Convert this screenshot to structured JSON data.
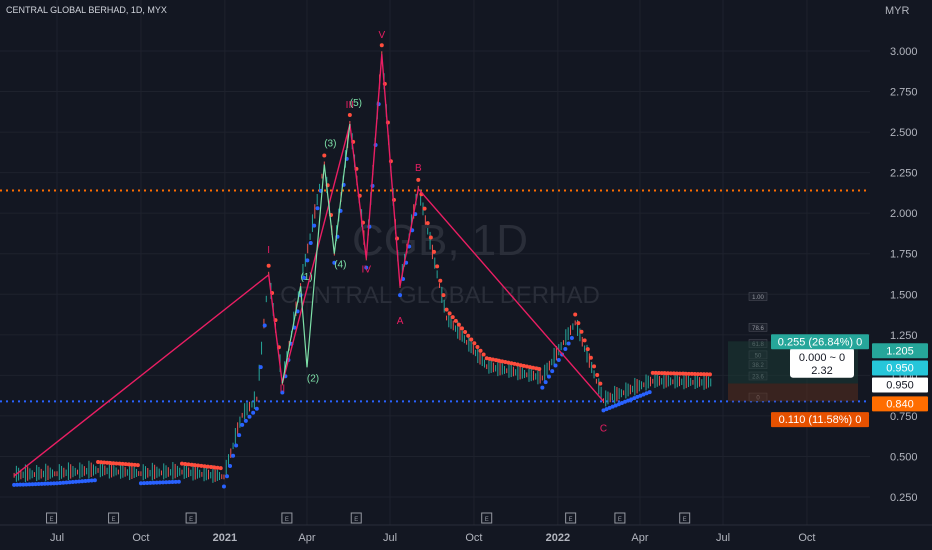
{
  "header": {
    "symbol": "CENTRAL GLOBAL BERHAD, 1D, MYX",
    "currency": "MYR"
  },
  "watermark": {
    "ticker": "CGB, 1D",
    "name": "CENTRAL GLOBAL BERHAD"
  },
  "colors": {
    "bg": "#131722",
    "text": "#b2b5be",
    "red": "#ff4d3d",
    "blue": "#2962ff",
    "wave": "#e91e63",
    "subwave": "#7ee0a8",
    "orange_line": "#ff6d00",
    "candle_up": "#26a69a",
    "candle_down": "#ef5350"
  },
  "chart_data": {
    "type": "line",
    "title": "CENTRAL GLOBAL BERHAD, 1D, MYX",
    "ylabel": "MYR",
    "ylim": [
      0.2,
      3.25
    ],
    "y_ticks": [
      "3.000",
      "2.750",
      "2.500",
      "2.250",
      "2.000",
      "1.750",
      "1.500",
      "1.250",
      "1.000",
      "0.750",
      "0.500",
      "0.250"
    ],
    "x_ticks": [
      "Jul",
      "Oct",
      "2021",
      "Apr",
      "Jul",
      "Oct",
      "2022",
      "Apr",
      "Jul",
      "Oct"
    ],
    "price_series": [
      {
        "x": "2020-05-15",
        "y": 0.38
      },
      {
        "x": "2020-07-01",
        "y": 0.39
      },
      {
        "x": "2020-08-15",
        "y": 0.41
      },
      {
        "x": "2020-10-01",
        "y": 0.39
      },
      {
        "x": "2020-11-15",
        "y": 0.4
      },
      {
        "x": "2020-12-31",
        "y": 0.37
      },
      {
        "x": "2021-01-20",
        "y": 0.75
      },
      {
        "x": "2021-02-05",
        "y": 0.85
      },
      {
        "x": "2021-02-18",
        "y": 1.62
      },
      {
        "x": "2021-03-05",
        "y": 0.95
      },
      {
        "x": "2021-03-25",
        "y": 1.55
      },
      {
        "x": "2021-04-20",
        "y": 2.3
      },
      {
        "x": "2021-05-01",
        "y": 1.75
      },
      {
        "x": "2021-05-18",
        "y": 2.55
      },
      {
        "x": "2021-06-05",
        "y": 1.72
      },
      {
        "x": "2021-06-22",
        "y": 2.98
      },
      {
        "x": "2021-07-12",
        "y": 1.55
      },
      {
        "x": "2021-08-01",
        "y": 2.15
      },
      {
        "x": "2021-09-01",
        "y": 1.35
      },
      {
        "x": "2021-10-15",
        "y": 1.05
      },
      {
        "x": "2021-12-15",
        "y": 0.98
      },
      {
        "x": "2022-01-20",
        "y": 1.32
      },
      {
        "x": "2022-02-20",
        "y": 0.84
      },
      {
        "x": "2022-04-15",
        "y": 0.96
      },
      {
        "x": "2022-06-20",
        "y": 0.95
      }
    ],
    "horizontal_levels": [
      {
        "y": 2.14,
        "style": "dotted",
        "color": "#ff6d00"
      },
      {
        "y": 0.84,
        "style": "dotted",
        "color": "#2962ff"
      }
    ],
    "wave_labels": [
      {
        "text": "I",
        "x": "2021-02-18",
        "y": 1.62
      },
      {
        "text": "II",
        "x": "2021-03-05",
        "y": 0.95
      },
      {
        "text": "III",
        "x": "2021-05-18",
        "y": 2.55
      },
      {
        "text": "IV",
        "x": "2021-06-05",
        "y": 1.72
      },
      {
        "text": "V",
        "x": "2021-06-22",
        "y": 2.98
      },
      {
        "text": "A",
        "x": "2021-07-12",
        "y": 1.55
      },
      {
        "text": "B",
        "x": "2021-08-01",
        "y": 2.15
      },
      {
        "text": "C",
        "x": "2022-02-20",
        "y": 0.84
      }
    ],
    "subwave_labels": [
      {
        "text": "(1)",
        "x": "2021-03-25",
        "y": 1.55
      },
      {
        "text": "(2)",
        "x": "2021-04-01",
        "y": 1.05
      },
      {
        "text": "(3)",
        "x": "2021-04-20",
        "y": 2.3
      },
      {
        "text": "(4)",
        "x": "2021-05-01",
        "y": 1.75
      },
      {
        "text": "(5)",
        "x": "2021-05-18",
        "y": 2.55
      }
    ],
    "fib_levels": [
      "1.00",
      "78.6",
      "61.8",
      "50",
      "38.2",
      "23.6",
      "0"
    ],
    "price_labels": [
      {
        "text": "0.255 (26.84%) 0",
        "y": 1.21,
        "color": "#26a69a"
      },
      {
        "text": "1.205",
        "y": 1.205,
        "color": "#26a69a"
      },
      {
        "text": "0.950",
        "y": 0.95,
        "color": "#26c6da"
      },
      {
        "text": "0.950",
        "y": 0.95,
        "color": "#ffffff"
      },
      {
        "text": "0.840",
        "y": 0.84,
        "color": "#ff6d00"
      },
      {
        "text": "0.110 (11.58%) 0",
        "y": 0.73,
        "color": "#e65100"
      }
    ],
    "risk_box": {
      "line1": "0.000 ~ 0",
      "line2": "2.32"
    },
    "event_markers": [
      "E",
      "E",
      "E",
      "E",
      "E",
      "E",
      "E",
      "E",
      "E",
      "E"
    ]
  }
}
